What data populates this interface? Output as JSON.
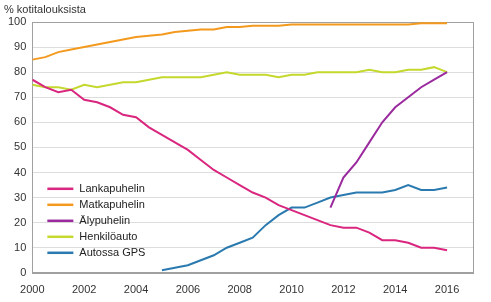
{
  "chart_data": {
    "type": "line",
    "y_label": "% kotitalouksista",
    "x": [
      2000,
      2000.5,
      2001,
      2001.5,
      2002,
      2002.5,
      2003,
      2003.5,
      2004,
      2004.5,
      2005,
      2005.5,
      2006,
      2006.5,
      2007,
      2007.5,
      2008,
      2008.5,
      2009,
      2009.5,
      2010,
      2010.5,
      2011,
      2011.5,
      2012,
      2012.5,
      2013,
      2013.5,
      2014,
      2014.5,
      2015,
      2015.5,
      2016
    ],
    "series": [
      {
        "name": "Lankapuhelin",
        "color": "#d9267e",
        "values": [
          77,
          74,
          72,
          73,
          69,
          68,
          66,
          63,
          62,
          58,
          55,
          52,
          49,
          45,
          41,
          38,
          35,
          32,
          30,
          27,
          25,
          23,
          21,
          19,
          18,
          18,
          16,
          13,
          13,
          12,
          10,
          10,
          9
        ]
      },
      {
        "name": "Matkapuhelin",
        "color": "#f39a1e",
        "values": [
          85,
          86,
          88,
          89,
          90,
          91,
          92,
          93,
          94,
          94.5,
          95,
          96,
          96.5,
          97,
          97,
          98,
          98,
          98.5,
          98.5,
          98.5,
          99,
          99,
          99,
          99,
          99,
          99,
          99,
          99,
          99,
          99,
          99.5,
          99.5,
          99.5
        ]
      },
      {
        "name": "Älypuhelin",
        "color": "#9b2a9e",
        "values": [
          null,
          null,
          null,
          null,
          null,
          null,
          null,
          null,
          null,
          null,
          null,
          null,
          null,
          null,
          null,
          null,
          null,
          null,
          null,
          null,
          null,
          null,
          null,
          26,
          38,
          44,
          52,
          60,
          66,
          70,
          74,
          77,
          80
        ]
      },
      {
        "name": "Henkilöauto",
        "color": "#c5d82e",
        "values": [
          75,
          74,
          74,
          73,
          75,
          74,
          75,
          76,
          76,
          77,
          78,
          78,
          78,
          78,
          79,
          80,
          79,
          79,
          79,
          78,
          79,
          79,
          80,
          80,
          80,
          80,
          81,
          80,
          80,
          81,
          81,
          82,
          80
        ]
      },
      {
        "name": "Autossa GPS",
        "color": "#2a7ab0",
        "values": [
          null,
          null,
          null,
          null,
          null,
          null,
          null,
          null,
          null,
          null,
          1,
          2,
          3,
          5,
          7,
          10,
          12,
          14,
          19,
          23,
          26,
          26,
          28,
          30,
          31,
          32,
          32,
          32,
          33,
          35,
          33,
          33,
          34
        ]
      }
    ],
    "xlim": [
      2000,
      2017
    ],
    "xticks": [
      2000,
      2002,
      2004,
      2006,
      2008,
      2010,
      2012,
      2014,
      2016
    ],
    "ylim": [
      0,
      100
    ],
    "yticks": [
      0,
      10,
      20,
      30,
      40,
      50,
      60,
      70,
      80,
      90,
      100
    ],
    "grid": true,
    "legend": "left"
  }
}
